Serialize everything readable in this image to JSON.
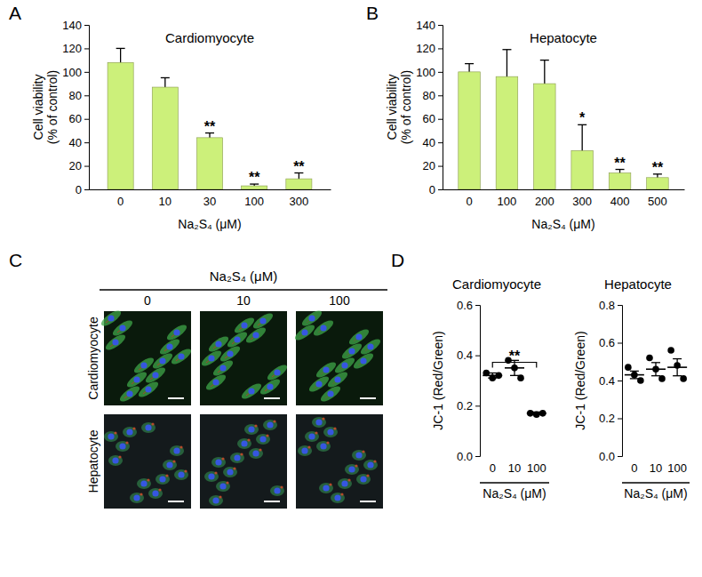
{
  "panel_labels": [
    "A",
    "B",
    "C",
    "D"
  ],
  "chart_data": [
    {
      "type": "bar",
      "title": "Cardiomyocyte",
      "categories": [
        "0",
        "10",
        "30",
        "100",
        "300"
      ],
      "values": [
        108,
        87,
        44,
        3,
        9
      ],
      "errors": [
        12,
        8,
        4,
        1.5,
        5
      ],
      "annotations": [
        null,
        null,
        "**",
        "**",
        "**"
      ],
      "color": "#ccf07a",
      "x_label": "Na₂S₄ (μM)",
      "y_label": [
        "Cell viability",
        "(% of control)"
      ],
      "ylim": [
        0,
        140
      ],
      "yticks": [
        0,
        20,
        40,
        60,
        80,
        100,
        120,
        140
      ]
    },
    {
      "type": "bar",
      "title": "Hepatocyte",
      "categories": [
        "0",
        "100",
        "200",
        "300",
        "400",
        "500"
      ],
      "values": [
        100,
        96,
        90,
        33,
        14,
        10
      ],
      "errors": [
        7,
        23,
        20,
        22,
        3,
        3
      ],
      "annotations": [
        null,
        null,
        null,
        "*",
        "**",
        "**"
      ],
      "color": "#ccf07a",
      "x_label": "Na₂S₄ (μM)",
      "y_label": [
        "Cell viability",
        "(% of control)"
      ],
      "ylim": [
        0,
        140
      ],
      "yticks": [
        0,
        20,
        40,
        60,
        80,
        100,
        120,
        140
      ]
    },
    {
      "type": "dot_plot",
      "title": "Cardiomyocyte",
      "categories": [
        "0",
        "10",
        "100"
      ],
      "points": [
        [
          0.33,
          0.31,
          0.32
        ],
        [
          0.38,
          0.35,
          0.31
        ],
        [
          0.17,
          0.165,
          0.17
        ]
      ],
      "means": [
        0.32,
        0.35,
        0.17
      ],
      "errors": [
        0.01,
        0.03,
        0.005
      ],
      "comparisons": [
        {
          "from": 0,
          "to": 2,
          "label": "**"
        }
      ],
      "color": "#000000",
      "x_label": "Na₂S₄ (μM)",
      "y_label": "JC-1 (Red/Green)",
      "ylim": [
        0,
        0.6
      ],
      "yticks": [
        {
          "value": 0,
          "label": "0.0"
        },
        {
          "value": 0.2,
          "label": "0.2"
        },
        {
          "value": 0.4,
          "label": "0.4"
        },
        {
          "value": 0.6,
          "label": "0.6"
        }
      ]
    },
    {
      "type": "dot_plot",
      "title": "Hepatocyte",
      "categories": [
        "0",
        "10",
        "100"
      ],
      "points": [
        [
          0.47,
          0.43,
          0.4
        ],
        [
          0.52,
          0.46,
          0.41
        ],
        [
          0.56,
          0.48,
          0.41
        ]
      ],
      "means": [
        0.43,
        0.46,
        0.47
      ],
      "errors": [
        0.02,
        0.035,
        0.045
      ],
      "color": "#000000",
      "x_label": "Na₂S₄ (μM)",
      "y_label": "JC-1 (Red/Green)",
      "ylim": [
        0,
        0.8
      ],
      "yticks": [
        {
          "value": 0,
          "label": "0.0"
        },
        {
          "value": 0.2,
          "label": "0.2"
        },
        {
          "value": 0.4,
          "label": "0.4"
        },
        {
          "value": 0.6,
          "label": "0.6"
        },
        {
          "value": 0.8,
          "label": "0.8"
        }
      ]
    }
  ],
  "image_panel": {
    "header": "Na₂S₄ (μM)",
    "columns": [
      "0",
      "10",
      "100"
    ],
    "rows": [
      "Cardiomyocyte",
      "Hepatocyte"
    ]
  }
}
